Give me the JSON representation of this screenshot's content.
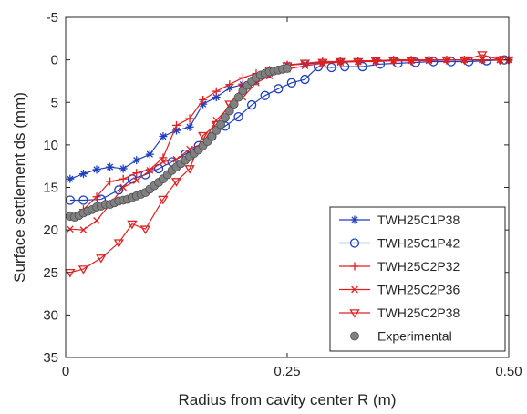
{
  "chart_data": {
    "type": "line",
    "title": "",
    "xlabel": "Radius from cavity center R (m)",
    "ylabel": "Surface settlement ds (mm)",
    "xlim": [
      0,
      0.5
    ],
    "ylim": [
      -5,
      35
    ],
    "y_reversed": true,
    "grid": false,
    "legend_position": "bottom-right",
    "x_ticks": [
      {
        "value": 0,
        "label": "0"
      },
      {
        "value": 0.25,
        "label": "0.25"
      },
      {
        "value": 0.5,
        "label": "0.50"
      }
    ],
    "y_ticks": [
      {
        "value": -5,
        "label": "-5"
      },
      {
        "value": 0,
        "label": "0"
      },
      {
        "value": 5,
        "label": "5"
      },
      {
        "value": 10,
        "label": "10"
      },
      {
        "value": 15,
        "label": "15"
      },
      {
        "value": 20,
        "label": "20"
      },
      {
        "value": 25,
        "label": "25"
      },
      {
        "value": 30,
        "label": "30"
      },
      {
        "value": 35,
        "label": "35"
      }
    ],
    "series": [
      {
        "name": "TWH25C1P38",
        "color": "#1f3fbf",
        "marker": "asterisk",
        "x": [
          0.005,
          0.02,
          0.035,
          0.05,
          0.065,
          0.08,
          0.095,
          0.11,
          0.125,
          0.14,
          0.155,
          0.17,
          0.185,
          0.2,
          0.215,
          0.23,
          0.25,
          0.27,
          0.29,
          0.31,
          0.33,
          0.35,
          0.37,
          0.39,
          0.41,
          0.43,
          0.45,
          0.47,
          0.49,
          0.5
        ],
        "y": [
          14,
          13.4,
          12.9,
          12.6,
          12.8,
          11.8,
          11.1,
          9.0,
          8.3,
          7.9,
          5.2,
          4.4,
          3.3,
          2.9,
          2.5,
          1.6,
          0.6,
          0.5,
          0.3,
          0.2,
          0.2,
          0.1,
          0.1,
          0.1,
          0.0,
          0.0,
          0.0,
          0.0,
          0.0,
          0.0
        ]
      },
      {
        "name": "TWH25C1P42",
        "color": "#1f3fbf",
        "marker": "circle",
        "x": [
          0.005,
          0.02,
          0.04,
          0.06,
          0.075,
          0.09,
          0.105,
          0.12,
          0.135,
          0.15,
          0.165,
          0.18,
          0.195,
          0.21,
          0.225,
          0.24,
          0.255,
          0.27,
          0.285,
          0.3,
          0.315,
          0.335,
          0.355,
          0.375,
          0.395,
          0.415,
          0.435,
          0.455,
          0.475,
          0.495
        ],
        "y": [
          16.5,
          16.5,
          16.4,
          15.3,
          14.0,
          13.5,
          12.8,
          12.0,
          11.1,
          10.1,
          9.0,
          7.8,
          6.7,
          5.3,
          4.2,
          3.4,
          2.7,
          2.3,
          0.8,
          0.9,
          0.8,
          0.8,
          0.5,
          0.4,
          0.3,
          0.2,
          0.2,
          0.2,
          0.1,
          0.0
        ]
      },
      {
        "name": "TWH25C2P32",
        "color": "#e02020",
        "marker": "plus",
        "x": [
          0.005,
          0.02,
          0.035,
          0.05,
          0.065,
          0.08,
          0.095,
          0.11,
          0.125,
          0.14,
          0.155,
          0.17,
          0.185,
          0.2,
          0.215,
          0.23,
          0.25,
          0.27,
          0.29,
          0.31,
          0.33,
          0.35,
          0.37,
          0.39,
          0.41,
          0.43,
          0.45,
          0.47,
          0.49,
          0.5
        ],
        "y": [
          18.3,
          17.6,
          16.1,
          14.3,
          14.0,
          13.3,
          12.9,
          11.5,
          7.7,
          6.9,
          4.7,
          3.7,
          2.9,
          2.1,
          1.6,
          1.2,
          0.6,
          0.4,
          0.2,
          0.2,
          0.1,
          0.1,
          0.0,
          0.0,
          0.0,
          0.0,
          0.0,
          0.0,
          0.0,
          0.0
        ]
      },
      {
        "name": "TWH25C2P36",
        "color": "#e02020",
        "marker": "cross",
        "x": [
          0.005,
          0.02,
          0.035,
          0.05,
          0.065,
          0.08,
          0.095,
          0.11,
          0.125,
          0.14,
          0.155,
          0.17,
          0.185,
          0.2,
          0.215,
          0.23,
          0.25,
          0.27,
          0.29,
          0.31,
          0.33,
          0.35,
          0.37,
          0.39,
          0.41,
          0.43,
          0.45,
          0.47,
          0.49,
          0.5
        ],
        "y": [
          19.9,
          20.0,
          18.9,
          17.0,
          15.0,
          14.2,
          13.0,
          12.0,
          11.7,
          10.5,
          9.8,
          7.1,
          5.5,
          4.4,
          2.7,
          1.9,
          1.1,
          0.7,
          0.4,
          0.3,
          0.2,
          0.2,
          0.1,
          0.1,
          0.1,
          0.0,
          0.0,
          0.0,
          0.0,
          0.0
        ]
      },
      {
        "name": "TWH25C2P38",
        "color": "#e02020",
        "marker": "triangle-down",
        "x": [
          0.005,
          0.02,
          0.04,
          0.06,
          0.075,
          0.09,
          0.11,
          0.125,
          0.14,
          0.155,
          0.17,
          0.185,
          0.2,
          0.215,
          0.23,
          0.25,
          0.27,
          0.29,
          0.31,
          0.33,
          0.35,
          0.37,
          0.39,
          0.41,
          0.43,
          0.45,
          0.47,
          0.49,
          0.5
        ],
        "y": [
          25.0,
          24.6,
          23.3,
          21.5,
          19.3,
          19.9,
          16.4,
          14.3,
          12.8,
          8.9,
          7.6,
          5.2,
          3.2,
          2.1,
          1.2,
          0.7,
          0.4,
          0.3,
          0.2,
          0.2,
          0.1,
          0.1,
          0.1,
          0.0,
          0.0,
          0.0,
          -0.6,
          0.0,
          0.0
        ]
      },
      {
        "name": "Experimental",
        "color": "#808080",
        "marker": "filled-circle",
        "x": [
          0.005,
          0.01,
          0.015,
          0.02,
          0.025,
          0.03,
          0.035,
          0.04,
          0.045,
          0.05,
          0.055,
          0.06,
          0.065,
          0.07,
          0.075,
          0.08,
          0.085,
          0.09,
          0.095,
          0.1,
          0.105,
          0.11,
          0.115,
          0.12,
          0.125,
          0.13,
          0.135,
          0.14,
          0.145,
          0.15,
          0.155,
          0.16,
          0.165,
          0.17,
          0.175,
          0.18,
          0.185,
          0.19,
          0.195,
          0.2,
          0.205,
          0.21,
          0.215,
          0.22,
          0.225,
          0.23,
          0.235,
          0.24,
          0.245,
          0.25
        ],
        "y": [
          18.4,
          18.5,
          18.3,
          18.0,
          17.8,
          17.6,
          17.3,
          17.2,
          17.0,
          17.0,
          16.8,
          16.6,
          16.5,
          16.4,
          16.2,
          16.0,
          15.8,
          15.6,
          15.2,
          14.8,
          14.4,
          14.0,
          13.5,
          13.0,
          12.6,
          12.2,
          11.8,
          11.4,
          11.0,
          10.6,
          10.1,
          9.6,
          9.0,
          8.3,
          7.6,
          6.8,
          6.0,
          5.2,
          4.4,
          3.6,
          3.0,
          2.5,
          2.1,
          1.8,
          1.6,
          1.4,
          1.3,
          1.2,
          1.1,
          1.0
        ]
      }
    ]
  }
}
